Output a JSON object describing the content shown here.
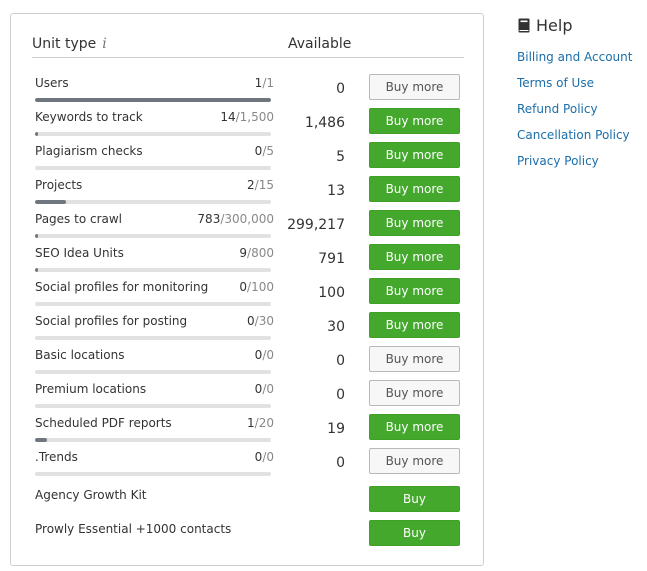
{
  "table": {
    "col_unit": "Unit type",
    "col_available": "Available",
    "info_icon": "i",
    "rows": [
      {
        "name": "Users",
        "used": "1",
        "total": "1",
        "fraction": 1.0,
        "available": "0",
        "button": "Buy more",
        "button_style": "gray"
      },
      {
        "name": "Keywords to track",
        "used": "14",
        "total": "1,500",
        "fraction": 0.0093,
        "available": "1,486",
        "button": "Buy more",
        "button_style": "green"
      },
      {
        "name": "Plagiarism checks",
        "used": "0",
        "total": "5",
        "fraction": 0.0,
        "available": "5",
        "button": "Buy more",
        "button_style": "green"
      },
      {
        "name": "Projects",
        "used": "2",
        "total": "15",
        "fraction": 0.133,
        "available": "13",
        "button": "Buy more",
        "button_style": "green"
      },
      {
        "name": "Pages to crawl",
        "used": "783",
        "total": "300,000",
        "fraction": 0.0026,
        "available": "299,217",
        "button": "Buy more",
        "button_style": "green"
      },
      {
        "name": "SEO Idea Units",
        "used": "9",
        "total": "800",
        "fraction": 0.011,
        "available": "791",
        "button": "Buy more",
        "button_style": "green"
      },
      {
        "name": "Social profiles for monitoring",
        "used": "0",
        "total": "100",
        "fraction": 0.0,
        "available": "100",
        "button": "Buy more",
        "button_style": "green"
      },
      {
        "name": "Social profiles for posting",
        "used": "0",
        "total": "30",
        "fraction": 0.0,
        "available": "30",
        "button": "Buy more",
        "button_style": "green"
      },
      {
        "name": "Basic locations",
        "used": "0",
        "total": "0",
        "fraction": 0.0,
        "available": "0",
        "button": "Buy more",
        "button_style": "gray"
      },
      {
        "name": "Premium locations",
        "used": "0",
        "total": "0",
        "fraction": 0.0,
        "available": "0",
        "button": "Buy more",
        "button_style": "gray"
      },
      {
        "name": "Scheduled PDF reports",
        "used": "1",
        "total": "20",
        "fraction": 0.05,
        "available": "19",
        "button": "Buy more",
        "button_style": "green"
      },
      {
        "name": ".Trends",
        "used": "0",
        "total": "0",
        "fraction": 0.0,
        "available": "0",
        "button": "Buy more",
        "button_style": "gray"
      }
    ],
    "extras": [
      {
        "name": "Agency Growth Kit",
        "button": "Buy"
      },
      {
        "name": "Prowly Essential +1000 contacts",
        "button": "Buy"
      }
    ]
  },
  "help": {
    "title": "Help",
    "links": [
      "Billing and Account",
      "Terms of Use",
      "Refund Policy",
      "Cancellation Policy",
      "Privacy Policy"
    ]
  },
  "colors": {
    "green": "#43a82c",
    "link": "#1b6ea8",
    "progress_fill": "#6f767e",
    "progress_track": "#e1e1e1"
  }
}
